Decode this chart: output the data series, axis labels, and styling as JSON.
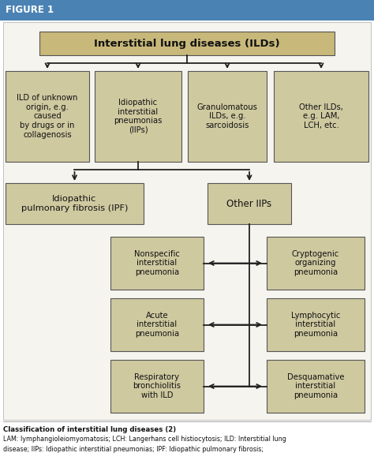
{
  "figure_title": "FIGURE 1",
  "title_bg": "#4a82b4",
  "title_text_color": "white",
  "box_fill_top": "#c8b87a",
  "box_fill_normal": "#cfc9a0",
  "box_border": "#555555",
  "arrow_color": "#222222",
  "bg_outer": "#ffffff",
  "bg_inner": "#f5f4ee",
  "bg_inner_border": "#aaaaaa",
  "caption_bold": "Classification of interstitial lung diseases (2)",
  "caption_text": "LAM: lymphangioleiomyomatosis; LCH: Langerhans cell histiocytosis; ILD: Interstitial lung\ndisease; IIPs: Idiopathic interstitial pneumonias; IPF: Idiopathic pulmonary fibrosis;",
  "top_box_text": "Interstitial lung diseases (ILDs)",
  "level2_boxes": [
    "ILD of unknown\norigin, e.g.\ncaused\nby drugs or in\ncollagenosis",
    "Idiopathic\ninterstitial\npneumonias\n(IIPs)",
    "Granulomatous\nILDs, e.g.\nsarcoidosis",
    "Other ILDs,\ne.g. LAM,\nLCH, etc."
  ],
  "level3_left": "Idiopathic\npulmonary fibrosis (IPF)",
  "level3_right": "Other IIPs",
  "level4_left": [
    "Nonspecific\ninterstitial\npneumonia",
    "Acute\ninterstitial\npneumonia",
    "Respiratory\nbronchiolitis\nwith ILD"
  ],
  "level4_right": [
    "Cryptogenic\norganizing\npneumonia",
    "Lymphocytic\ninterstitial\npneumonia",
    "Desquamative\ninterstitial\npneumonia"
  ]
}
